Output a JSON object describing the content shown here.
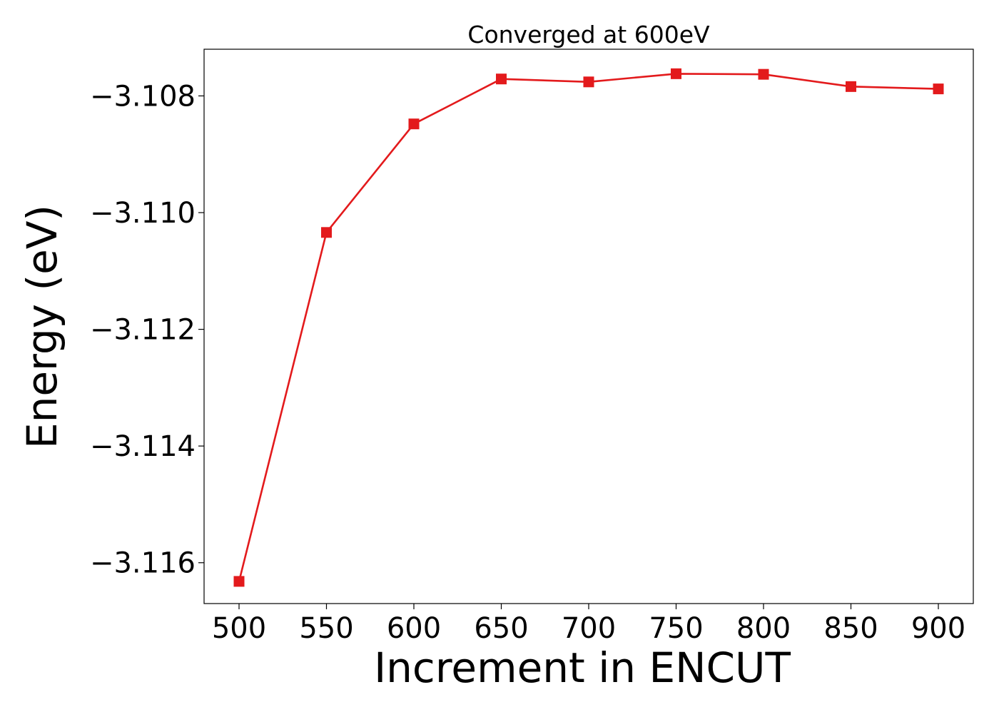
{
  "chart_data": {
    "type": "line",
    "title": "Converged at 600eV",
    "xlabel": "Increment in ENCUT",
    "ylabel": "Energy (eV)",
    "x": [
      500,
      550,
      600,
      650,
      700,
      750,
      800,
      850,
      900
    ],
    "x_ticks": [
      500,
      550,
      600,
      650,
      700,
      750,
      800,
      850,
      900
    ],
    "y_ticks": [
      -3.108,
      -3.11,
      -3.112,
      -3.114,
      -3.116
    ],
    "y_tick_labels": [
      "−3.108",
      "−3.110",
      "−3.112",
      "−3.114",
      "−3.116"
    ],
    "xlim": [
      480,
      920
    ],
    "ylim": [
      -3.1167,
      -3.1072
    ],
    "grid": false,
    "series": [
      {
        "marker": "square",
        "color": "#e31a1c",
        "values": [
          -3.11632,
          -3.11034,
          -3.10848,
          -3.10771,
          -3.10776,
          -3.10762,
          -3.10763,
          -3.10784,
          -3.10788
        ]
      }
    ]
  }
}
